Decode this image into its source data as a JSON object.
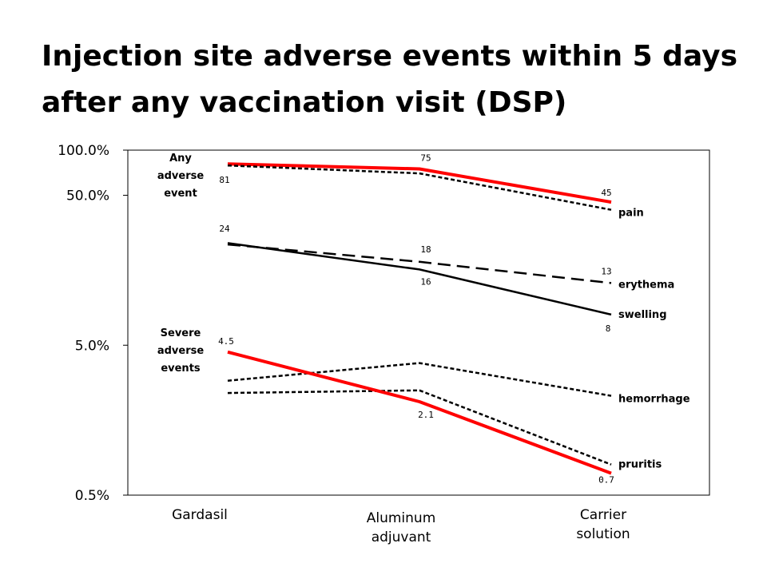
{
  "title_lines": [
    "Injection site adverse events within 5 days",
    "after any vaccination visit (DSP)"
  ],
  "chart_data": {
    "type": "line",
    "y_scale": "log",
    "ylim": [
      0.5,
      100
    ],
    "y_ticks": [
      {
        "value": 100,
        "label": "100.0%"
      },
      {
        "value": 50,
        "label": "50.0%"
      },
      {
        "value": 5,
        "label": "5.0%"
      },
      {
        "value": 0.5,
        "label": "0.5%"
      }
    ],
    "categories": [
      "Gardasil",
      "Aluminum adjuvant",
      "Carrier solution"
    ],
    "category_label_lines": [
      [
        "Gardasil"
      ],
      [
        "Aluminum",
        "adjuvant"
      ],
      [
        "Carrier",
        "solution"
      ]
    ],
    "group_labels": [
      {
        "lines": [
          "Any",
          "adverse",
          "event"
        ],
        "anchor_value": 81
      },
      {
        "lines": [
          "Severe",
          "adverse",
          "events"
        ],
        "anchor_value": 4.5
      }
    ],
    "series": [
      {
        "key": "any",
        "values": [
          81,
          75,
          45
        ],
        "color": "#ff0000",
        "style": "solid",
        "width": 4,
        "point_labels": [
          "81",
          "75",
          "45"
        ]
      },
      {
        "key": "pain",
        "name": "pain",
        "values": [
          79,
          70,
          40
        ],
        "color": "#000000",
        "style": "dotted",
        "width": 2.5,
        "point_labels": [
          "",
          "",
          ""
        ]
      },
      {
        "key": "erythema",
        "name": "erythema",
        "values": [
          23.5,
          18,
          13
        ],
        "color": "#000000",
        "style": "dashed",
        "width": 2.5,
        "point_labels": [
          "24",
          "18",
          "13"
        ]
      },
      {
        "key": "swelling",
        "name": "swelling",
        "values": [
          24,
          16,
          8
        ],
        "color": "#000000",
        "style": "solid",
        "width": 2.5,
        "point_labels": [
          "",
          "16",
          "8"
        ]
      },
      {
        "key": "hemorrhage",
        "name": "hemorrhage",
        "values": [
          2.9,
          3.8,
          2.3
        ],
        "color": "#000000",
        "style": "dotted",
        "width": 2.5,
        "point_labels": [
          "",
          "",
          ""
        ]
      },
      {
        "key": "pruritis",
        "name": "pruritis",
        "values": [
          2.4,
          2.5,
          0.8
        ],
        "color": "#000000",
        "style": "dotted",
        "width": 2.5,
        "point_labels": [
          "",
          "",
          ""
        ]
      },
      {
        "key": "severe",
        "values": [
          4.5,
          2.1,
          0.7
        ],
        "color": "#ff0000",
        "style": "solid",
        "width": 4,
        "point_labels": [
          "4.5",
          "2.1",
          "0.7"
        ]
      }
    ]
  }
}
